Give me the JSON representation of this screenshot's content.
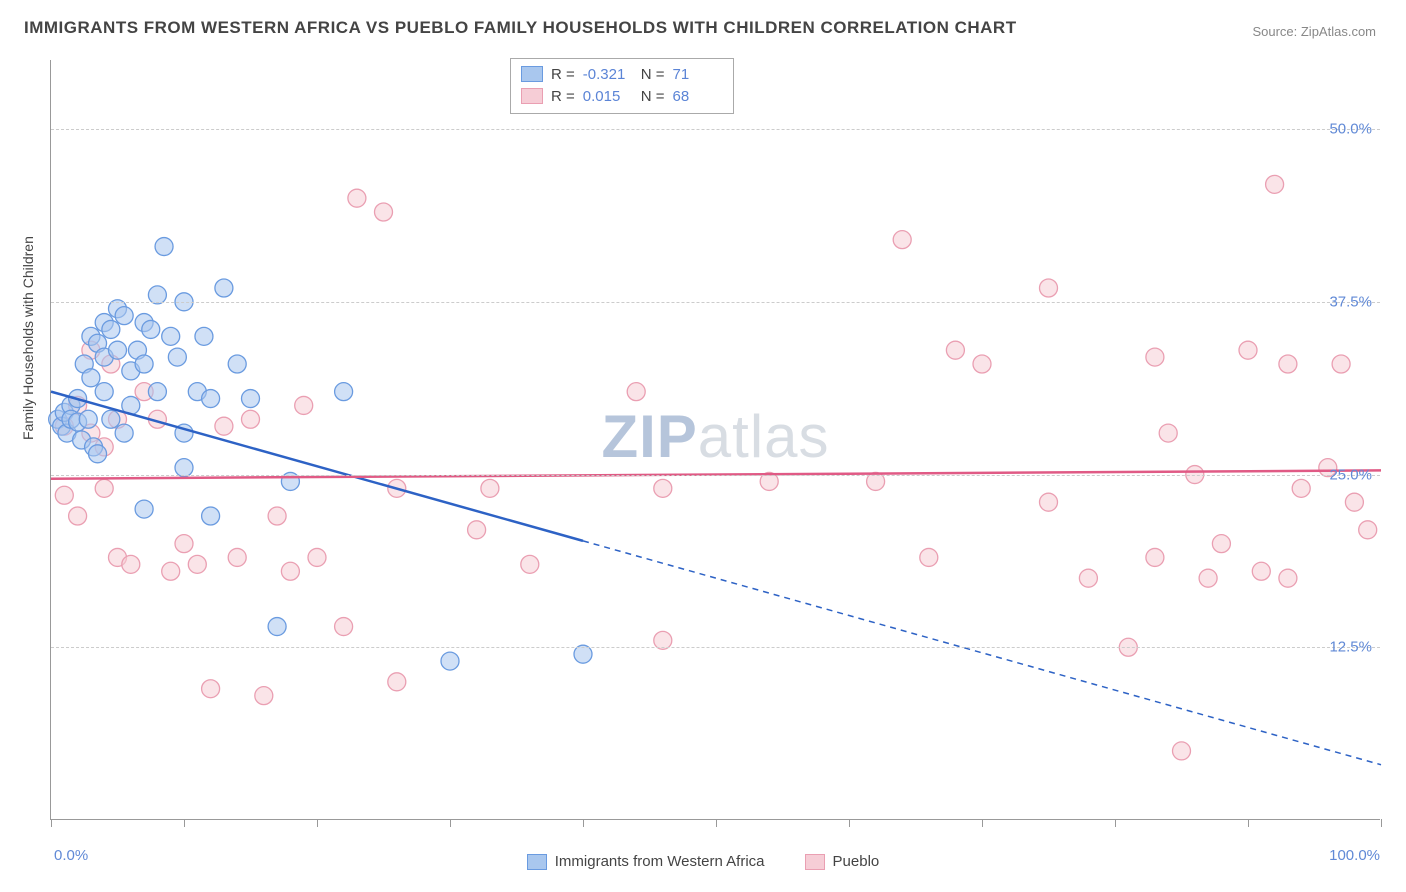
{
  "title": "IMMIGRANTS FROM WESTERN AFRICA VS PUEBLO FAMILY HOUSEHOLDS WITH CHILDREN CORRELATION CHART",
  "source": "Source: ZipAtlas.com",
  "watermark_a": "ZIP",
  "watermark_b": "atlas",
  "y_axis_label": "Family Households with Children",
  "xlim": [
    0,
    100
  ],
  "ylim": [
    0,
    55
  ],
  "x_min_label": "0.0%",
  "x_max_label": "100.0%",
  "y_ticks": [
    {
      "v": 12.5,
      "label": "12.5%"
    },
    {
      "v": 25.0,
      "label": "25.0%"
    },
    {
      "v": 37.5,
      "label": "37.5%"
    },
    {
      "v": 50.0,
      "label": "50.0%"
    }
  ],
  "x_tick_positions": [
    0,
    10,
    20,
    30,
    40,
    50,
    60,
    70,
    80,
    90,
    100
  ],
  "series": [
    {
      "name": "Immigrants from Western Africa",
      "legend_key": "series1_label",
      "R": "-0.321",
      "N": "71",
      "fill": "#a9c7ee",
      "stroke": "#6a9be0",
      "line_color": "#2d62c5",
      "marker_r": 9,
      "trend": {
        "y_at_x0": 31.0,
        "y_at_x100": 4.0,
        "solid_until_x": 40
      },
      "points": [
        [
          0.5,
          29
        ],
        [
          0.8,
          28.5
        ],
        [
          1,
          29.5
        ],
        [
          1.2,
          28
        ],
        [
          1.5,
          30
        ],
        [
          1.5,
          29
        ],
        [
          2,
          28.8
        ],
        [
          2,
          30.5
        ],
        [
          2.3,
          27.5
        ],
        [
          2.5,
          33
        ],
        [
          2.8,
          29
        ],
        [
          3,
          32
        ],
        [
          3,
          35
        ],
        [
          3.2,
          27
        ],
        [
          3.5,
          34.5
        ],
        [
          3.5,
          26.5
        ],
        [
          4,
          36
        ],
        [
          4,
          33.5
        ],
        [
          4,
          31
        ],
        [
          4.5,
          35.5
        ],
        [
          4.5,
          29
        ],
        [
          5,
          34
        ],
        [
          5,
          37
        ],
        [
          5.5,
          36.5
        ],
        [
          5.5,
          28
        ],
        [
          6,
          32.5
        ],
        [
          6,
          30
        ],
        [
          6.5,
          34
        ],
        [
          7,
          36
        ],
        [
          7,
          33
        ],
        [
          7.5,
          35.5
        ],
        [
          8,
          38
        ],
        [
          8,
          31
        ],
        [
          8.5,
          41.5
        ],
        [
          9,
          35
        ],
        [
          9.5,
          33.5
        ],
        [
          10,
          37.5
        ],
        [
          10,
          28
        ],
        [
          10,
          25.5
        ],
        [
          11,
          31
        ],
        [
          11.5,
          35
        ],
        [
          12,
          30.5
        ],
        [
          13,
          38.5
        ],
        [
          14,
          33
        ],
        [
          7,
          22.5
        ],
        [
          12,
          22
        ],
        [
          15,
          30.5
        ],
        [
          17,
          14
        ],
        [
          18,
          24.5
        ],
        [
          22,
          31
        ],
        [
          30,
          11.5
        ],
        [
          40,
          12
        ]
      ]
    },
    {
      "name": "Pueblo",
      "legend_key": "series2_label",
      "R": "0.015",
      "N": "68",
      "fill": "#f6cdd6",
      "stroke": "#ea9fb2",
      "line_color": "#e05a85",
      "marker_r": 9,
      "trend": {
        "y_at_x0": 24.7,
        "y_at_x100": 25.3,
        "solid_until_x": 100
      },
      "points": [
        [
          1,
          23.5
        ],
        [
          1,
          28.5
        ],
        [
          2,
          22
        ],
        [
          2,
          30
        ],
        [
          3,
          28
        ],
        [
          3,
          34
        ],
        [
          4,
          24
        ],
        [
          4,
          27
        ],
        [
          4.5,
          33
        ],
        [
          5,
          29
        ],
        [
          5,
          19
        ],
        [
          6,
          18.5
        ],
        [
          7,
          31
        ],
        [
          8,
          29
        ],
        [
          9,
          18
        ],
        [
          10,
          20
        ],
        [
          11,
          18.5
        ],
        [
          12,
          9.5
        ],
        [
          13,
          28.5
        ],
        [
          14,
          19
        ],
        [
          15,
          29
        ],
        [
          16,
          9
        ],
        [
          17,
          22
        ],
        [
          18,
          18
        ],
        [
          19,
          30
        ],
        [
          20,
          19
        ],
        [
          22,
          14
        ],
        [
          23,
          45
        ],
        [
          25,
          44
        ],
        [
          26,
          24
        ],
        [
          26,
          10
        ],
        [
          32,
          21
        ],
        [
          33,
          24
        ],
        [
          36,
          18.5
        ],
        [
          44,
          31
        ],
        [
          46,
          24
        ],
        [
          46,
          13
        ],
        [
          54,
          24.5
        ],
        [
          62,
          24.5
        ],
        [
          64,
          42
        ],
        [
          66,
          19
        ],
        [
          68,
          34
        ],
        [
          70,
          33
        ],
        [
          75,
          38.5
        ],
        [
          75,
          23
        ],
        [
          78,
          17.5
        ],
        [
          81,
          12.5
        ],
        [
          83,
          33.5
        ],
        [
          83,
          19
        ],
        [
          84,
          28
        ],
        [
          85,
          5
        ],
        [
          86,
          25
        ],
        [
          87,
          17.5
        ],
        [
          88,
          20
        ],
        [
          90,
          34
        ],
        [
          91,
          18
        ],
        [
          92,
          46
        ],
        [
          93,
          17.5
        ],
        [
          93,
          33
        ],
        [
          94,
          24
        ],
        [
          96,
          25.5
        ],
        [
          97,
          33
        ],
        [
          98,
          23
        ],
        [
          99,
          21
        ]
      ]
    }
  ],
  "series1_label": "Immigrants from Western Africa",
  "series2_label": "Pueblo",
  "legend_r_label": "R =",
  "legend_n_label": "N ="
}
